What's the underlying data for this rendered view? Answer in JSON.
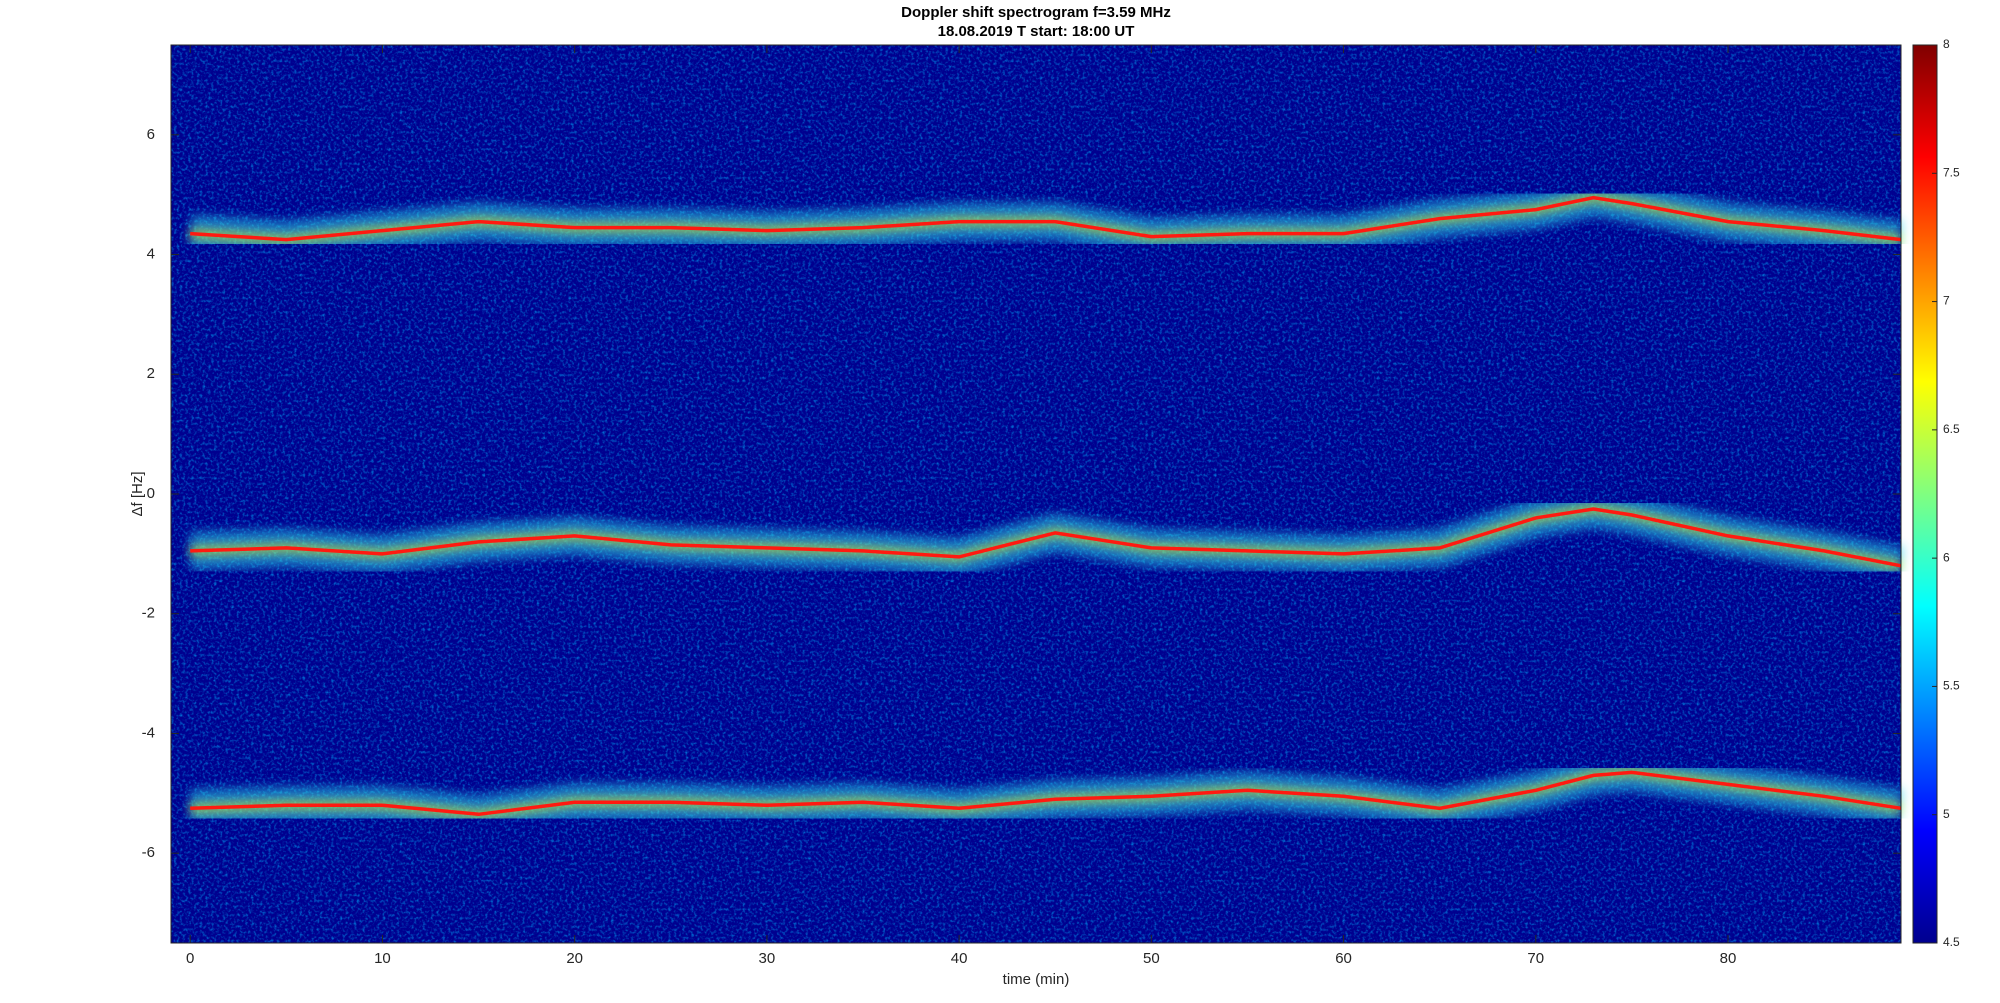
{
  "chart_data": {
    "type": "spectrogram",
    "title": "Doppler shift spectrogram f=3.59 MHz",
    "subtitle": "18.08.2019   T start: 18:00 UT",
    "x_label": "time (min)",
    "y_label": "Δf [Hz]",
    "xlim": [
      -1,
      89
    ],
    "ylim": [
      -7.5,
      7.5
    ],
    "xticks": [
      0,
      10,
      20,
      30,
      40,
      50,
      60,
      70,
      80
    ],
    "yticks": [
      -6,
      -4,
      -2,
      0,
      2,
      4,
      6
    ],
    "clim": [
      4.5,
      8
    ],
    "cticks": [
      4.5,
      5,
      5.5,
      6,
      6.5,
      7,
      7.5,
      8
    ],
    "colormap": [
      "#00008f",
      "#0000ff",
      "#0080ff",
      "#00ffff",
      "#80ff80",
      "#ffff00",
      "#ff8000",
      "#ff0000",
      "#800000"
    ],
    "halo_color": "#2ad3e8",
    "x": [
      0,
      5,
      10,
      15,
      20,
      25,
      30,
      35,
      40,
      45,
      50,
      55,
      60,
      65,
      70,
      73,
      75,
      80,
      85,
      89
    ],
    "series": [
      {
        "color": "#ff1a10",
        "values": [
          4.35,
          4.25,
          4.4,
          4.55,
          4.45,
          4.45,
          4.4,
          4.45,
          4.55,
          4.55,
          4.3,
          4.35,
          4.35,
          4.6,
          4.75,
          4.95,
          4.85,
          4.55,
          4.4,
          4.25
        ]
      },
      {
        "color": "#ff1a10",
        "values": [
          -0.95,
          -0.9,
          -1.0,
          -0.8,
          -0.7,
          -0.85,
          -0.9,
          -0.95,
          -1.05,
          -0.65,
          -0.9,
          -0.95,
          -1.0,
          -0.9,
          -0.4,
          -0.25,
          -0.35,
          -0.7,
          -0.95,
          -1.2
        ]
      },
      {
        "color": "#ff1a10",
        "values": [
          -5.25,
          -5.2,
          -5.2,
          -5.35,
          -5.15,
          -5.15,
          -5.2,
          -5.15,
          -5.25,
          -5.1,
          -5.05,
          -4.95,
          -5.05,
          -5.25,
          -4.95,
          -4.7,
          -4.65,
          -4.85,
          -5.05,
          -5.25
        ]
      }
    ]
  }
}
